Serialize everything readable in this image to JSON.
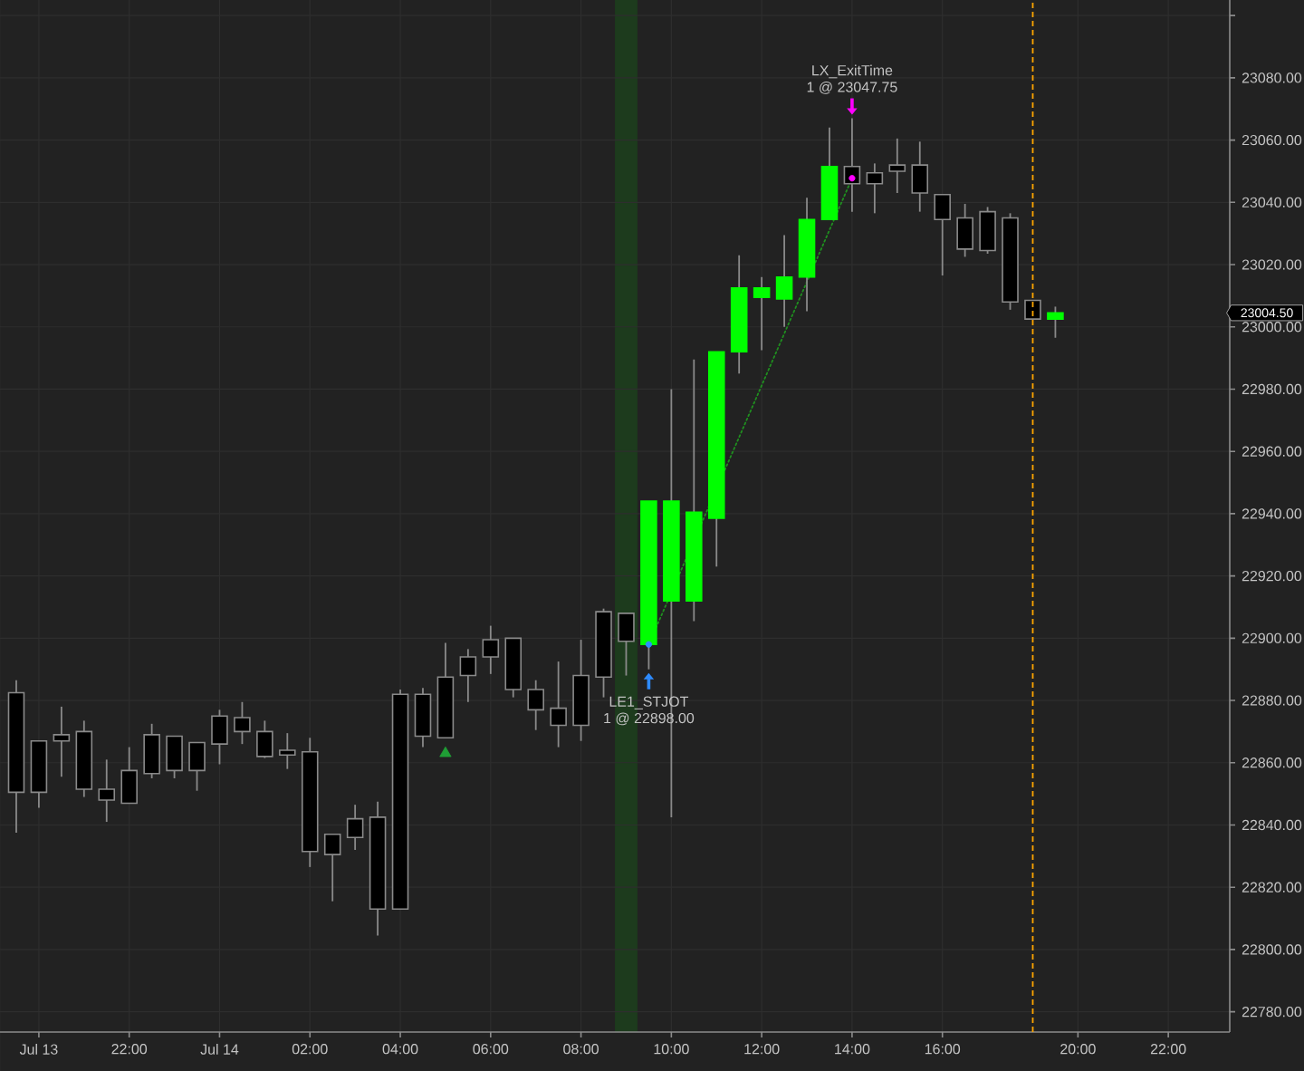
{
  "chart_data": {
    "type": "candlestick",
    "categories": [
      null,
      "Jul 13",
      null,
      null,
      null,
      "22:00",
      null,
      null,
      null,
      "Jul 14",
      null,
      null,
      null,
      "02:00",
      null,
      null,
      null,
      "04:00",
      null,
      null,
      null,
      "06:00",
      null,
      null,
      null,
      "08:00",
      null,
      null,
      null,
      "10:00",
      null,
      null,
      null,
      "12:00",
      null,
      null,
      null,
      "14:00",
      null,
      null,
      null,
      "16:00",
      null,
      null,
      null,
      null,
      null,
      "20:00",
      null,
      null,
      null,
      "22:00",
      null,
      null
    ],
    "ohlc": [
      [
        22882.5,
        22886.5,
        22837.5,
        22850.5
      ],
      [
        22867,
        22867,
        22845.5,
        22850.5
      ],
      [
        22869,
        22878,
        22855.5,
        22867
      ],
      [
        22870,
        22873.5,
        22849,
        22851.5
      ],
      [
        22851.5,
        22861,
        22841,
        22848
      ],
      [
        22857.5,
        22865,
        22847,
        22847
      ],
      [
        22869,
        22872.5,
        22855,
        22856.5
      ],
      [
        22868.5,
        22868.5,
        22855,
        22857.5
      ],
      [
        22866.5,
        22866.5,
        22851,
        22857.5
      ],
      [
        22875,
        22877,
        22859.5,
        22866
      ],
      [
        22874.5,
        22879.5,
        22866,
        22870
      ],
      [
        22870,
        22873.5,
        22861.5,
        22862
      ],
      [
        22864,
        22869.5,
        22858,
        22862.5
      ],
      [
        22863.5,
        22868,
        22826.5,
        22831.5
      ],
      [
        22837,
        22837,
        22815.5,
        22830.5
      ],
      [
        22842,
        22846.5,
        22832,
        22836
      ],
      [
        22842.5,
        22847.5,
        22804.5,
        22813
      ],
      [
        22882,
        22883.5,
        22813,
        22813
      ],
      [
        22882,
        22884,
        22865,
        22868.5
      ],
      [
        22887.5,
        22898.5,
        22868,
        22868
      ],
      [
        22894,
        22896.5,
        22879.5,
        22888
      ],
      [
        22899.5,
        22904,
        22888.5,
        22894
      ],
      [
        22900,
        22900,
        22881,
        22883.5
      ],
      [
        22883.5,
        22886.5,
        22870.5,
        22877
      ],
      [
        22877.5,
        22892.5,
        22865,
        22872
      ],
      [
        22888,
        22899.5,
        22867,
        22872
      ],
      [
        22908.5,
        22909.5,
        22881,
        22887.5
      ],
      [
        22908,
        22908,
        22888,
        22899
      ],
      [
        22898,
        22944,
        22890,
        22944
      ],
      [
        22912,
        22980,
        22842.5,
        22944
      ],
      [
        22912,
        22989.5,
        22905.5,
        22940.5
      ],
      [
        22938.5,
        22992,
        22923,
        22992
      ],
      [
        22992,
        23023,
        22985,
        23012.5
      ],
      [
        23009.5,
        23016,
        22992.5,
        23012.5
      ],
      [
        23009,
        23029.5,
        23000,
        23016
      ],
      [
        23016,
        23041.5,
        23005,
        23034.5
      ],
      [
        23034.5,
        23064,
        23034.5,
        23051.5
      ],
      [
        23051.5,
        23067,
        23037,
        23046
      ],
      [
        23049.5,
        23052.5,
        23036.5,
        23046
      ],
      [
        23052,
        23060.5,
        23043,
        23050
      ],
      [
        23052,
        23059.5,
        23037,
        23043
      ],
      [
        23042.5,
        23042.5,
        23016.5,
        23034.5
      ],
      [
        23035,
        23039.5,
        23022.5,
        23025
      ],
      [
        23037,
        23038.5,
        23023.5,
        23024.5
      ],
      [
        23035,
        23036.5,
        23005.5,
        23008
      ],
      [
        23008.5,
        23008.5,
        23002.5,
        23002.5
      ],
      [
        23002.5,
        23006.5,
        22996.5,
        23004.5
      ],
      null,
      null,
      null,
      null,
      null,
      null,
      null
    ],
    "colors": [
      "#000000",
      "#000000",
      "#000000",
      "#000000",
      "#000000",
      "#000000",
      "#000000",
      "#000000",
      "#000000",
      "#000000",
      "#000000",
      "#000000",
      "#000000",
      "#000000",
      "#000000",
      "#000000",
      "#000000",
      "#000000",
      "#000000",
      "#000000",
      "#000000",
      "#000000",
      "#000000",
      "#000000",
      "#000000",
      "#000000",
      "#000000",
      "#000000",
      "#00ff00",
      "#00ff00",
      "#00ff00",
      "#00ff00",
      "#00ff00",
      "#00ff00",
      "#00ff00",
      "#00ff00",
      "#00ff00",
      "#000000",
      "#000000",
      "#000000",
      "#000000",
      "#000000",
      "#000000",
      "#000000",
      "#000000",
      "#000000",
      "#00ff00",
      null,
      null,
      null,
      null,
      null,
      null,
      null
    ],
    "series": [
      {
        "type": "line",
        "values": [
          null,
          null,
          null,
          null,
          null,
          null,
          null,
          null,
          null,
          null,
          null,
          null,
          null,
          null,
          null,
          null,
          null,
          null,
          null,
          null,
          null,
          null,
          null,
          null,
          null,
          null,
          null,
          null,
          22898,
          null,
          null,
          null,
          null,
          null,
          null,
          null,
          null,
          23047.75,
          null,
          null,
          null,
          null,
          null,
          null,
          null,
          null,
          null,
          null,
          null,
          null,
          null,
          null,
          null,
          null
        ],
        "color": "#1f8f1f",
        "line_style": "dotted"
      },
      {
        "type": "scatter",
        "marker": "triangle",
        "values": [
          null,
          null,
          null,
          null,
          null,
          null,
          null,
          null,
          null,
          null,
          null,
          null,
          null,
          null,
          null,
          null,
          null,
          null,
          null,
          22863,
          null,
          null,
          null,
          null,
          null,
          null,
          null,
          null,
          null,
          null,
          null,
          null,
          null,
          null,
          null,
          null,
          null,
          null,
          null,
          null,
          null,
          null,
          null,
          null,
          null,
          null,
          null,
          null,
          null,
          null,
          null,
          null,
          null,
          null
        ],
        "color": "#1f9e35"
      },
      {
        "type": "scatter",
        "marker": "circle",
        "values": [
          null,
          null,
          null,
          null,
          null,
          null,
          null,
          null,
          null,
          null,
          null,
          null,
          null,
          null,
          null,
          null,
          null,
          null,
          null,
          null,
          null,
          null,
          null,
          null,
          null,
          null,
          null,
          null,
          22898,
          null,
          null,
          null,
          null,
          null,
          null,
          null,
          null,
          23047.75,
          null,
          null,
          null,
          null,
          null,
          null,
          null,
          null,
          null,
          null,
          null,
          null,
          null,
          null,
          null,
          null
        ],
        "colors": [
          null,
          null,
          null,
          null,
          null,
          null,
          null,
          null,
          null,
          null,
          null,
          null,
          null,
          null,
          null,
          null,
          null,
          null,
          null,
          null,
          null,
          null,
          null,
          null,
          null,
          null,
          null,
          null,
          "#2e8bff",
          null,
          null,
          null,
          null,
          null,
          null,
          null,
          null,
          "#ff00ff",
          null,
          null,
          null,
          null,
          null,
          null,
          null,
          null,
          null,
          null,
          null,
          null,
          null,
          null,
          null,
          null
        ]
      }
    ],
    "ylim": [
      22773.5,
      23105
    ],
    "yticks": [
      {
        "value": 22780,
        "label": "22780.00"
      },
      {
        "value": 22800,
        "label": "22800.00"
      },
      {
        "value": 22820,
        "label": "22820.00"
      },
      {
        "value": 22840,
        "label": "22840.00"
      },
      {
        "value": 22860,
        "label": "22860.00"
      },
      {
        "value": 22880,
        "label": "22880.00"
      },
      {
        "value": 22900,
        "label": "22900.00"
      },
      {
        "value": 22920,
        "label": "22920.00"
      },
      {
        "value": 22940,
        "label": "22940.00"
      },
      {
        "value": 22960,
        "label": "22960.00"
      },
      {
        "value": 22980,
        "label": "22980.00"
      },
      {
        "value": 23000,
        "label": "23000.00"
      },
      {
        "value": 23020,
        "label": "23020.00"
      },
      {
        "value": 23040,
        "label": "23040.00"
      },
      {
        "value": 23060,
        "label": "23060.00"
      },
      {
        "value": 23080,
        "label": "23080.00"
      },
      {
        "value": 23100,
        "label": null
      }
    ],
    "grid": true,
    "annotations": [
      {
        "text": "LE1_STJOT",
        "y": 22890
      },
      {
        "text": "1 @ 22898.00",
        "y": 22890
      },
      {
        "text": "LX_ExitTime",
        "x": "14:00",
        "y": 23067
      },
      {
        "text": "1 @ 23047.75",
        "x": "14:00",
        "y": 23067
      },
      "23004.50"
    ]
  }
}
